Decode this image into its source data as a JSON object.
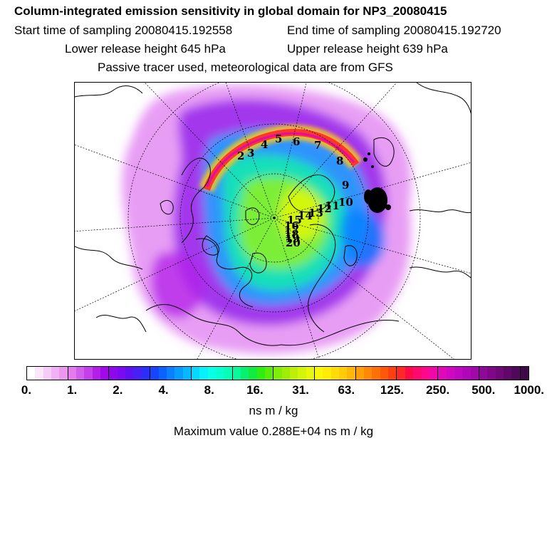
{
  "header": {
    "title": "Column-integrated emission sensitivity in global domain for NP3_20080415",
    "start_label": "Start time of sampling 20080415.192558",
    "end_label": "End time of sampling 20080415.192720",
    "lower_label": "Lower release height  645 hPa",
    "upper_label": "Upper release height  639 hPa",
    "tracer_note": "Passive tracer used, meteorological data are from GFS"
  },
  "map": {
    "projection": "north-polar-stereographic",
    "trajectory_labels": [
      "2",
      "3",
      "4",
      "5",
      "6",
      "7",
      "8",
      "9",
      "10",
      "11",
      "12",
      "13",
      "14",
      "15",
      "16",
      "17",
      "18",
      "19",
      "20"
    ]
  },
  "legend": {
    "tick_labels": [
      "0.",
      "1.",
      "2.",
      "4.",
      "8.",
      "16.",
      "31.",
      "63.",
      "125.",
      "250.",
      "500.",
      "1000."
    ],
    "colors": [
      "#ffffff",
      "#fbe6fb",
      "#f6ccf7",
      "#f1b1f4",
      "#ec96f0",
      "#e47cee",
      "#d25eec",
      "#c441ea",
      "#b21fe8",
      "#a10ae8",
      "#8e08ec",
      "#7a0af0",
      "#6010f2",
      "#4820f4",
      "#2a2ff8",
      "#1844ff",
      "#0c62ff",
      "#0a80ff",
      "#089cff",
      "#06b8ff",
      "#06d8ff",
      "#08f0fa",
      "#08ffe8",
      "#08ffd0",
      "#08ffb8",
      "#08f89c",
      "#08f070",
      "#10ec40",
      "#30ec10",
      "#58ec08",
      "#80ee08",
      "#a0ee08",
      "#bcf008",
      "#d4f408",
      "#e8f808",
      "#f8f808",
      "#ffec08",
      "#ffdc08",
      "#ffcc08",
      "#ffb808",
      "#ffa008",
      "#ff8808",
      "#ff7008",
      "#ff5808",
      "#ff4010",
      "#ff2828",
      "#ff0a48",
      "#ff0870",
      "#ff0890",
      "#f008a8",
      "#e008b8",
      "#d008c0",
      "#c008c0",
      "#b008b8",
      "#a008a8",
      "#900898",
      "#800888",
      "#700878",
      "#600868",
      "#500858",
      "#400848"
    ],
    "units": "ns m / kg",
    "maximum": "Maximum value  0.288E+04 ns m / kg"
  }
}
